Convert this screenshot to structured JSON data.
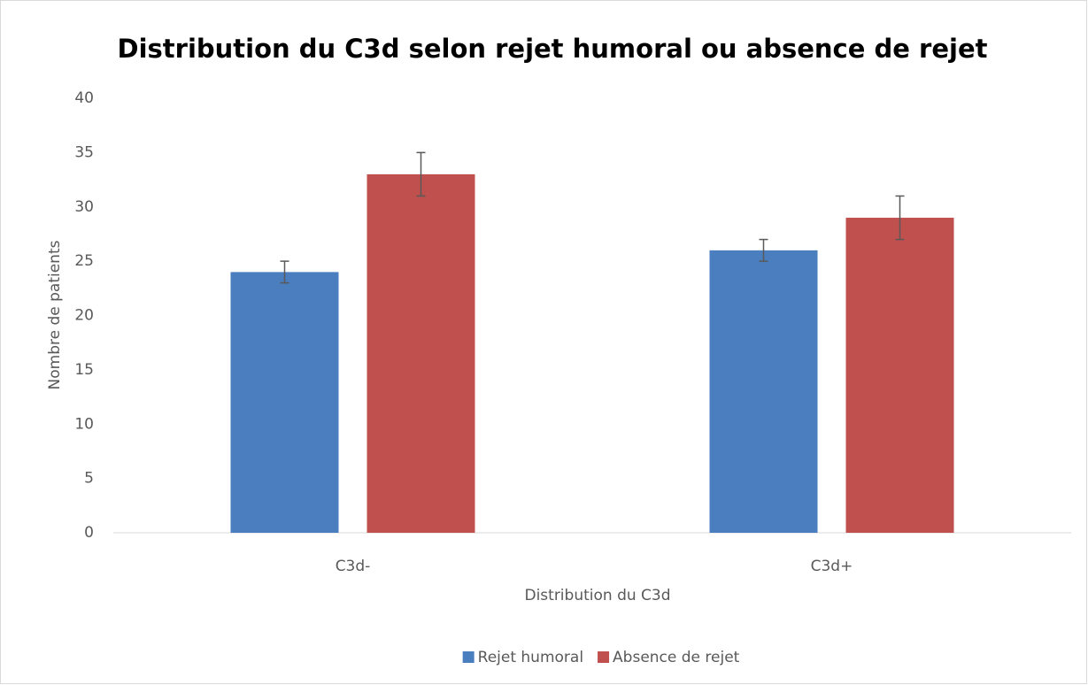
{
  "chart_data": {
    "type": "bar",
    "title": "Distribution du C3d selon rejet humoral ou absence de rejet",
    "x_label": "Distribution du C3d",
    "y_label": "Nombre de patients",
    "categories": [
      "C3d-",
      "C3d+"
    ],
    "series": [
      {
        "name": "Rejet humoral",
        "color": "#4a7ebf",
        "values": [
          24,
          26
        ],
        "errors": [
          1,
          1
        ]
      },
      {
        "name": "Absence de rejet",
        "color": "#c0504d",
        "values": [
          33,
          29
        ],
        "errors": [
          2,
          2
        ]
      }
    ],
    "ylim": [
      0,
      40
    ],
    "yticks": [
      0,
      5,
      10,
      15,
      20,
      25,
      30,
      35,
      40
    ],
    "grid": false,
    "legend": "bottom"
  }
}
